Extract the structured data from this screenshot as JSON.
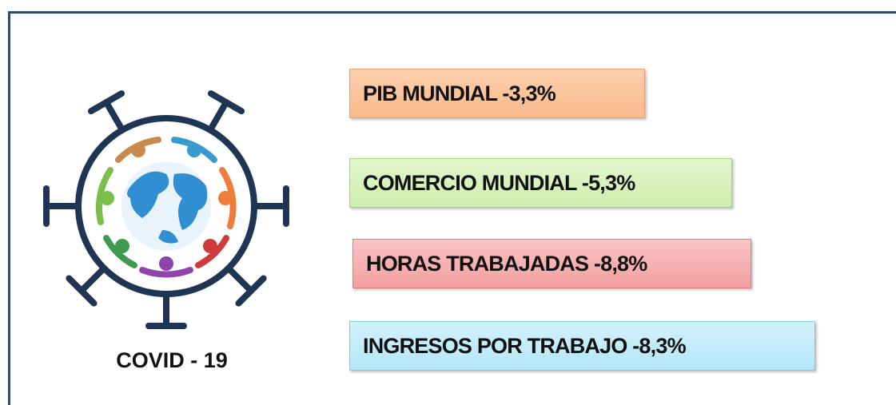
{
  "logo": {
    "label": "COVID - 19"
  },
  "items": [
    {
      "text": "PIB MUNDIAL -3,3%"
    },
    {
      "text": "COMERCIO MUNDIAL -5,3%"
    },
    {
      "text": "HORAS TRABAJADAS -8,8%"
    },
    {
      "text": "INGRESOS POR TRABAJO -8,3%"
    }
  ]
}
